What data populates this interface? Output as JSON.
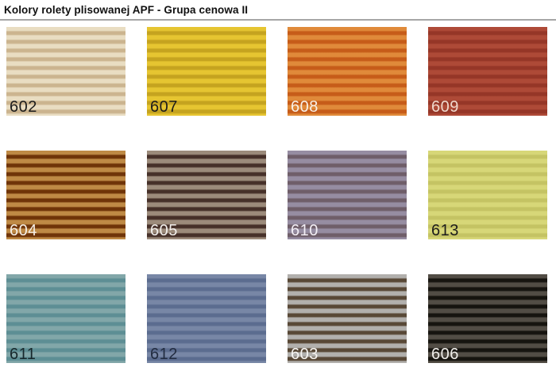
{
  "page": {
    "title": "Kolory rolety plisowanej APF - Grupa cenowa II",
    "background_color": "#ffffff",
    "divider_color": "#a5a5a5"
  },
  "swatch_grid": {
    "columns": 4,
    "rows": 3,
    "swatches": [
      {
        "code": "602",
        "light_color": "#e9ddc2",
        "dark_color": "#cbb48f",
        "label_color": "#1c1c1c"
      },
      {
        "code": "607",
        "light_color": "#e6c531",
        "dark_color": "#c5a31f",
        "label_color": "#1c1c1c"
      },
      {
        "code": "608",
        "light_color": "#e08a3a",
        "dark_color": "#c65c19",
        "label_color": "#f8f1e8"
      },
      {
        "code": "609",
        "light_color": "#ae4a37",
        "dark_color": "#953627",
        "label_color": "#f0d9cd"
      },
      {
        "code": "604",
        "light_color": "#bf8a45",
        "dark_color": "#6f3408",
        "label_color": "#f5efe6"
      },
      {
        "code": "605",
        "light_color": "#9c8b7b",
        "dark_color": "#463029",
        "label_color": "#f2efec"
      },
      {
        "code": "610",
        "light_color": "#968da2",
        "dark_color": "#6f5e69",
        "label_color": "#f2eef5"
      },
      {
        "code": "613",
        "light_color": "#d7d778",
        "dark_color": "#c4c363",
        "label_color": "#1c1c1c"
      },
      {
        "code": "611",
        "light_color": "#82a7a9",
        "dark_color": "#5d8e94",
        "label_color": "#17272b"
      },
      {
        "code": "612",
        "light_color": "#7887a6",
        "dark_color": "#5b6c8f",
        "label_color": "#222c40"
      },
      {
        "code": "603",
        "light_color": "#b2b0ad",
        "dark_color": "#584836",
        "label_color": "#f6f4f1"
      },
      {
        "code": "606",
        "light_color": "#524d45",
        "dark_color": "#16140f",
        "label_color": "#efede9"
      }
    ]
  }
}
